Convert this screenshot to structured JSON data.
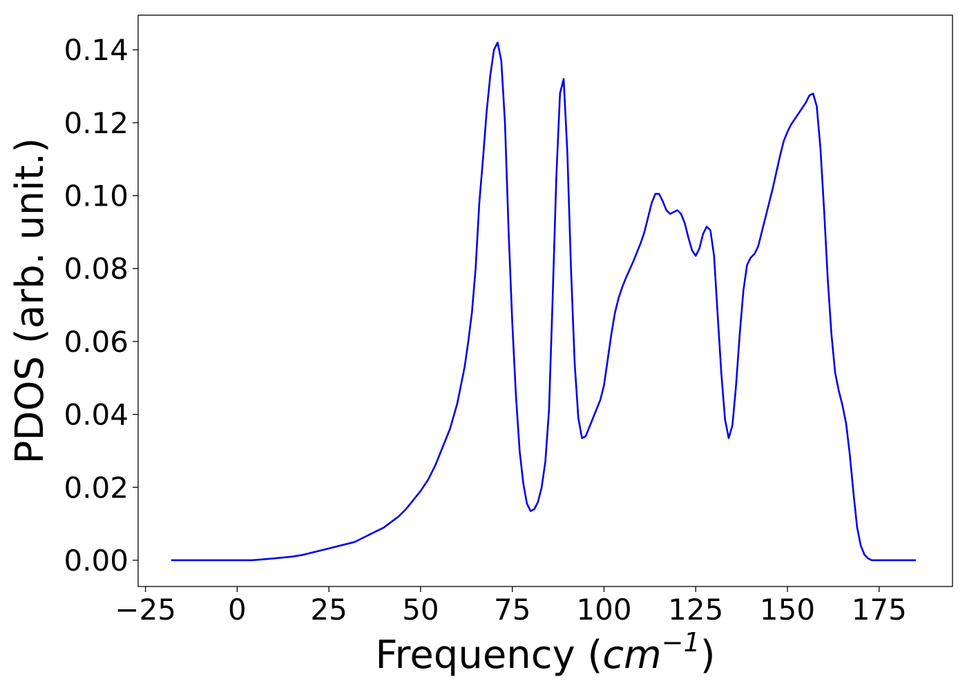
{
  "chart_data": {
    "type": "line",
    "title": "",
    "xlabel": "Frequency",
    "xlabel_unit": "cm",
    "xlabel_unit_exp": "−1",
    "ylabel": "PDOS (arb. unit.)",
    "xlim": [
      -27,
      195
    ],
    "ylim": [
      -0.0072,
      0.1495
    ],
    "x_ticks": [
      -25,
      0,
      25,
      50,
      75,
      100,
      125,
      150,
      175
    ],
    "x_tick_labels": [
      "−25",
      "0",
      "25",
      "50",
      "75",
      "100",
      "125",
      "150",
      "175"
    ],
    "y_ticks": [
      0.0,
      0.02,
      0.04,
      0.06,
      0.08,
      0.1,
      0.12,
      0.14
    ],
    "y_tick_labels": [
      "0.00",
      "0.02",
      "0.04",
      "0.06",
      "0.08",
      "0.10",
      "0.12",
      "0.14"
    ],
    "grid": false,
    "series": [
      {
        "color": "#0000ee",
        "x": [
          -18,
          0,
          4,
          10,
          15,
          18,
          20,
          22,
          24,
          26,
          28,
          30,
          32,
          34,
          36,
          38,
          40,
          42,
          44,
          46,
          48,
          50,
          52,
          54,
          56,
          58,
          60,
          62,
          63,
          64,
          65,
          66,
          67,
          68,
          69,
          70,
          71,
          72,
          73,
          74,
          75,
          76,
          77,
          78,
          79,
          80,
          81,
          82,
          83,
          84,
          85,
          86,
          87,
          88,
          89,
          90,
          91,
          92,
          93,
          94,
          95,
          96,
          97,
          98,
          99,
          100,
          101,
          102,
          103,
          104,
          105,
          106,
          108,
          110,
          111,
          112,
          113,
          114,
          115,
          116,
          117,
          118,
          119,
          120,
          121,
          122,
          123,
          124,
          125,
          126,
          127,
          128,
          129,
          130,
          131,
          132,
          133,
          134,
          135,
          136,
          137,
          138,
          139,
          140,
          141,
          142,
          143,
          144,
          145,
          146,
          147,
          148,
          149,
          150,
          151,
          152,
          153,
          154,
          155,
          156,
          157,
          158,
          159,
          160,
          161,
          162,
          163,
          164,
          165,
          166,
          167,
          168,
          169,
          170,
          171,
          172,
          173,
          175,
          185
        ],
        "y": [
          0.0,
          0.0,
          0.0,
          0.0005,
          0.001,
          0.0015,
          0.002,
          0.0025,
          0.003,
          0.0035,
          0.004,
          0.0045,
          0.005,
          0.006,
          0.007,
          0.008,
          0.009,
          0.0105,
          0.012,
          0.014,
          0.0165,
          0.019,
          0.022,
          0.026,
          0.031,
          0.036,
          0.043,
          0.053,
          0.06,
          0.068,
          0.08,
          0.098,
          0.11,
          0.123,
          0.133,
          0.14,
          0.142,
          0.137,
          0.12,
          0.09,
          0.065,
          0.045,
          0.03,
          0.021,
          0.0155,
          0.0135,
          0.014,
          0.016,
          0.02,
          0.027,
          0.041,
          0.072,
          0.105,
          0.128,
          0.132,
          0.112,
          0.08,
          0.054,
          0.039,
          0.0335,
          0.034,
          0.0365,
          0.039,
          0.0415,
          0.044,
          0.048,
          0.055,
          0.062,
          0.068,
          0.072,
          0.075,
          0.0775,
          0.082,
          0.087,
          0.09,
          0.094,
          0.098,
          0.1005,
          0.1005,
          0.0985,
          0.096,
          0.095,
          0.0955,
          0.096,
          0.095,
          0.0925,
          0.0885,
          0.085,
          0.0835,
          0.0855,
          0.0895,
          0.0915,
          0.0905,
          0.0835,
          0.067,
          0.051,
          0.0385,
          0.0335,
          0.037,
          0.048,
          0.062,
          0.074,
          0.081,
          0.083,
          0.084,
          0.086,
          0.09,
          0.094,
          0.098,
          0.102,
          0.1065,
          0.111,
          0.115,
          0.1175,
          0.1195,
          0.121,
          0.1225,
          0.124,
          0.1255,
          0.1275,
          0.128,
          0.1245,
          0.113,
          0.096,
          0.077,
          0.062,
          0.0515,
          0.0465,
          0.0425,
          0.0375,
          0.029,
          0.0185,
          0.009,
          0.004,
          0.0015,
          0.0005,
          0.0,
          0.0,
          0.0
        ]
      }
    ]
  }
}
